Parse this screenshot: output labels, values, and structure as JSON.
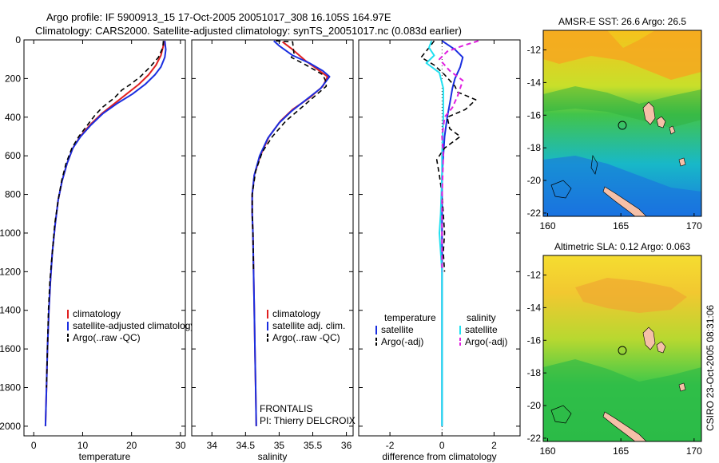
{
  "title_line1": "Argo profile: IF 5900913_15 17-Oct-2005 20051017_308 16.105S 164.97E",
  "title_line2": "Climatology: CARS2000. Satellite-adjusted climatology: synTS_20051017.nc (0.083d earlier)",
  "footer": "CSIRO 23-Oct-2005 08:31:06",
  "colors": {
    "climatology": "#e02020",
    "satellite": "#1a2ee0",
    "argo": "#000000",
    "sal_satellite": "#20e0f0",
    "sal_argo": "#e020e0",
    "land": "#f5c0a8"
  },
  "chart_data": [
    {
      "type": "line",
      "id": "temperature",
      "xlabel": "temperature",
      "xlim": [
        -2,
        31
      ],
      "ylim": [
        0,
        2050
      ],
      "yreverse": true,
      "xticks": [
        0,
        10,
        20,
        30
      ],
      "yticks": [
        0,
        200,
        400,
        600,
        800,
        1000,
        1200,
        1400,
        1600,
        1800,
        2000
      ],
      "legend": [
        "climatology",
        "satellite-adjusted climatology",
        "Argo(..raw -QC)"
      ],
      "series": [
        {
          "name": "climatology",
          "style": "red",
          "points": [
            [
              26.8,
              5
            ],
            [
              26.5,
              30
            ],
            [
              26,
              80
            ],
            [
              25,
              130
            ],
            [
              23.5,
              180
            ],
            [
              21.5,
              230
            ],
            [
              19,
              280
            ],
            [
              16.5,
              330
            ],
            [
              14,
              380
            ],
            [
              11.5,
              440
            ],
            [
              9.5,
              500
            ],
            [
              8,
              560
            ],
            [
              6.8,
              640
            ],
            [
              5.8,
              730
            ],
            [
              5,
              830
            ],
            [
              4.4,
              950
            ],
            [
              3.8,
              1100
            ],
            [
              3.4,
              1250
            ],
            [
              3.1,
              1400
            ],
            [
              2.8,
              1600
            ],
            [
              2.6,
              1800
            ],
            [
              2.4,
              2000
            ]
          ]
        },
        {
          "name": "satellite",
          "style": "blue",
          "points": [
            [
              26.8,
              5
            ],
            [
              27,
              50
            ],
            [
              26.8,
              90
            ],
            [
              26,
              140
            ],
            [
              24.8,
              180
            ],
            [
              22.8,
              230
            ],
            [
              20.2,
              280
            ],
            [
              17,
              330
            ],
            [
              14.2,
              380
            ],
            [
              11.7,
              440
            ],
            [
              9.6,
              500
            ],
            [
              8,
              560
            ],
            [
              6.8,
              640
            ],
            [
              5.8,
              730
            ],
            [
              5,
              830
            ],
            [
              4.4,
              950
            ],
            [
              3.8,
              1100
            ],
            [
              3.4,
              1250
            ],
            [
              3.1,
              1400
            ],
            [
              2.8,
              1600
            ],
            [
              2.6,
              1800
            ],
            [
              2.4,
              2000
            ]
          ]
        },
        {
          "name": "Argo",
          "style": "dash",
          "points": [
            [
              26.5,
              5
            ],
            [
              26.4,
              40
            ],
            [
              25.5,
              90
            ],
            [
              23.8,
              140
            ],
            [
              21.8,
              190
            ],
            [
              19.8,
              230
            ],
            [
              18,
              260
            ],
            [
              16.5,
              300
            ],
            [
              15.5,
              320
            ],
            [
              14,
              350
            ],
            [
              12.5,
              390
            ],
            [
              11,
              440
            ],
            [
              9.2,
              500
            ],
            [
              7.8,
              560
            ],
            [
              6.6,
              640
            ],
            [
              5.7,
              730
            ],
            [
              5,
              830
            ],
            [
              4.3,
              950
            ],
            [
              3.8,
              1100
            ],
            [
              3.3,
              1250
            ],
            [
              3,
              1400
            ],
            [
              2.8,
              1600
            ],
            [
              2.6,
              1800
            ]
          ]
        }
      ]
    },
    {
      "type": "line",
      "id": "salinity",
      "xlabel": "salinity",
      "xlim": [
        33.7,
        36.1
      ],
      "ylim": [
        0,
        2050
      ],
      "yreverse": true,
      "xticks": [
        34,
        34.5,
        35,
        35.5,
        36
      ],
      "xticklabels": [
        "34",
        "34.5",
        "35",
        "35.5",
        "36"
      ],
      "legend": [
        "climatology",
        "satellite adj. clim.",
        "Argo(..raw -QC)"
      ],
      "annotation": [
        "FRONTALIS",
        "PI: Thierry DELCROIX"
      ],
      "series": [
        {
          "name": "climatology",
          "style": "red",
          "points": [
            [
              35.05,
              10
            ],
            [
              35.2,
              50
            ],
            [
              35.4,
              110
            ],
            [
              35.6,
              160
            ],
            [
              35.72,
              190
            ],
            [
              35.65,
              240
            ],
            [
              35.45,
              300
            ],
            [
              35.2,
              360
            ],
            [
              35.02,
              420
            ],
            [
              34.85,
              500
            ],
            [
              34.72,
              600
            ],
            [
              34.63,
              700
            ],
            [
              34.6,
              800
            ],
            [
              34.6,
              900
            ],
            [
              34.61,
              1000
            ],
            [
              34.62,
              1200
            ],
            [
              34.63,
              1400
            ],
            [
              34.64,
              1600
            ],
            [
              34.65,
              1800
            ],
            [
              34.66,
              2000
            ]
          ]
        },
        {
          "name": "satellite",
          "style": "blue",
          "points": [
            [
              34.92,
              5
            ],
            [
              35.0,
              30
            ],
            [
              35.2,
              80
            ],
            [
              35.45,
              120
            ],
            [
              35.65,
              160
            ],
            [
              35.75,
              190
            ],
            [
              35.62,
              250
            ],
            [
              35.4,
              310
            ],
            [
              35.18,
              370
            ],
            [
              35.0,
              430
            ],
            [
              34.83,
              510
            ],
            [
              34.71,
              600
            ],
            [
              34.63,
              700
            ],
            [
              34.6,
              800
            ],
            [
              34.6,
              900
            ],
            [
              34.61,
              1000
            ],
            [
              34.62,
              1200
            ],
            [
              34.63,
              1400
            ],
            [
              34.64,
              1600
            ],
            [
              34.65,
              1800
            ],
            [
              34.66,
              2000
            ]
          ]
        },
        {
          "name": "Argo",
          "style": "dash",
          "points": [
            [
              34.95,
              5
            ],
            [
              35.2,
              10
            ],
            [
              35.22,
              70
            ],
            [
              35.18,
              90
            ],
            [
              35.4,
              130
            ],
            [
              35.65,
              180
            ],
            [
              35.7,
              220
            ],
            [
              35.7,
              240
            ],
            [
              35.5,
              300
            ],
            [
              35.3,
              360
            ],
            [
              35.1,
              420
            ],
            [
              34.9,
              500
            ],
            [
              34.75,
              580
            ],
            [
              34.65,
              680
            ],
            [
              34.6,
              800
            ],
            [
              34.6,
              900
            ],
            [
              34.61,
              1000
            ],
            [
              34.62,
              1200
            ]
          ]
        }
      ]
    },
    {
      "type": "line",
      "id": "difference",
      "xlabel": "difference from climatology",
      "xlim": [
        -3.2,
        3.0
      ],
      "ylim": [
        0,
        2050
      ],
      "yreverse": true,
      "xticks": [
        -2,
        0,
        2
      ],
      "legend_left": [
        "temperature",
        "satellite",
        "Argo(-adj)"
      ],
      "legend_right": [
        "salinity",
        "satellite",
        "Argo(-adj)"
      ],
      "series": [
        {
          "name": "temperature satellite",
          "style": "blue",
          "points": [
            [
              0,
              5
            ],
            [
              0.5,
              50
            ],
            [
              0.8,
              90
            ],
            [
              0.7,
              140
            ],
            [
              0.5,
              200
            ],
            [
              0.4,
              250
            ],
            [
              0.3,
              330
            ],
            [
              0.2,
              400
            ],
            [
              0.1,
              500
            ],
            [
              0.05,
              600
            ],
            [
              0,
              700
            ],
            [
              0,
              2000
            ]
          ]
        },
        {
          "name": "temperature Argo",
          "style": "dash",
          "points": [
            [
              -0.3,
              5
            ],
            [
              -0.5,
              40
            ],
            [
              -0.8,
              90
            ],
            [
              -0.3,
              130
            ],
            [
              0.1,
              180
            ],
            [
              0.5,
              240
            ],
            [
              0.6,
              270
            ],
            [
              1.3,
              310
            ],
            [
              0.9,
              360
            ],
            [
              0.2,
              400
            ],
            [
              0.3,
              460
            ],
            [
              0.7,
              500
            ],
            [
              0.1,
              560
            ],
            [
              -0.2,
              620
            ],
            [
              -0.1,
              700
            ],
            [
              0,
              800
            ],
            [
              0.1,
              1000
            ],
            [
              0.05,
              1100
            ],
            [
              0.1,
              1200
            ]
          ]
        },
        {
          "name": "salinity satellite",
          "style": "cyan",
          "points": [
            [
              -0.4,
              5
            ],
            [
              -0.5,
              40
            ],
            [
              -0.3,
              80
            ],
            [
              -0.6,
              120
            ],
            [
              -0.1,
              170
            ],
            [
              0.05,
              250
            ],
            [
              0.05,
              400
            ],
            [
              0,
              600
            ],
            [
              0,
              700
            ],
            [
              -0.05,
              900
            ],
            [
              -0.1,
              1000
            ],
            [
              0,
              1200
            ],
            [
              0,
              2000
            ]
          ]
        },
        {
          "name": "salinity Argo",
          "style": "magenta",
          "points": [
            [
              1.4,
              5
            ],
            [
              0.8,
              30
            ],
            [
              0.2,
              60
            ],
            [
              -0.1,
              100
            ],
            [
              0.3,
              160
            ],
            [
              0.8,
              210
            ],
            [
              0.6,
              290
            ],
            [
              0.4,
              350
            ],
            [
              0.1,
              400
            ],
            [
              0,
              500
            ],
            [
              0.05,
              600
            ],
            [
              0,
              800
            ],
            [
              0,
              1000
            ],
            [
              0,
              1200
            ]
          ]
        }
      ]
    },
    {
      "type": "heatmap",
      "id": "sst_map",
      "title": "AMSR-E SST: 26.6 Argo: 26.5",
      "xticks": [
        160,
        165,
        170
      ],
      "yticks": [
        -12,
        -14,
        -16,
        -18,
        -20,
        -22
      ],
      "xlim": [
        159.7,
        170.5
      ],
      "ylim": [
        -22.2,
        -10.8
      ],
      "marker": [
        165.0,
        -16.1
      ]
    },
    {
      "type": "heatmap",
      "id": "sla_map",
      "title": "Altimetric SLA: 0.12 Argo: 0.063",
      "xticks": [
        160,
        165,
        170
      ],
      "yticks": [
        -12,
        -14,
        -16,
        -18,
        -20,
        -22
      ],
      "xlim": [
        159.7,
        170.5
      ],
      "ylim": [
        -22.2,
        -10.8
      ],
      "marker": [
        165.0,
        -16.1
      ]
    }
  ]
}
